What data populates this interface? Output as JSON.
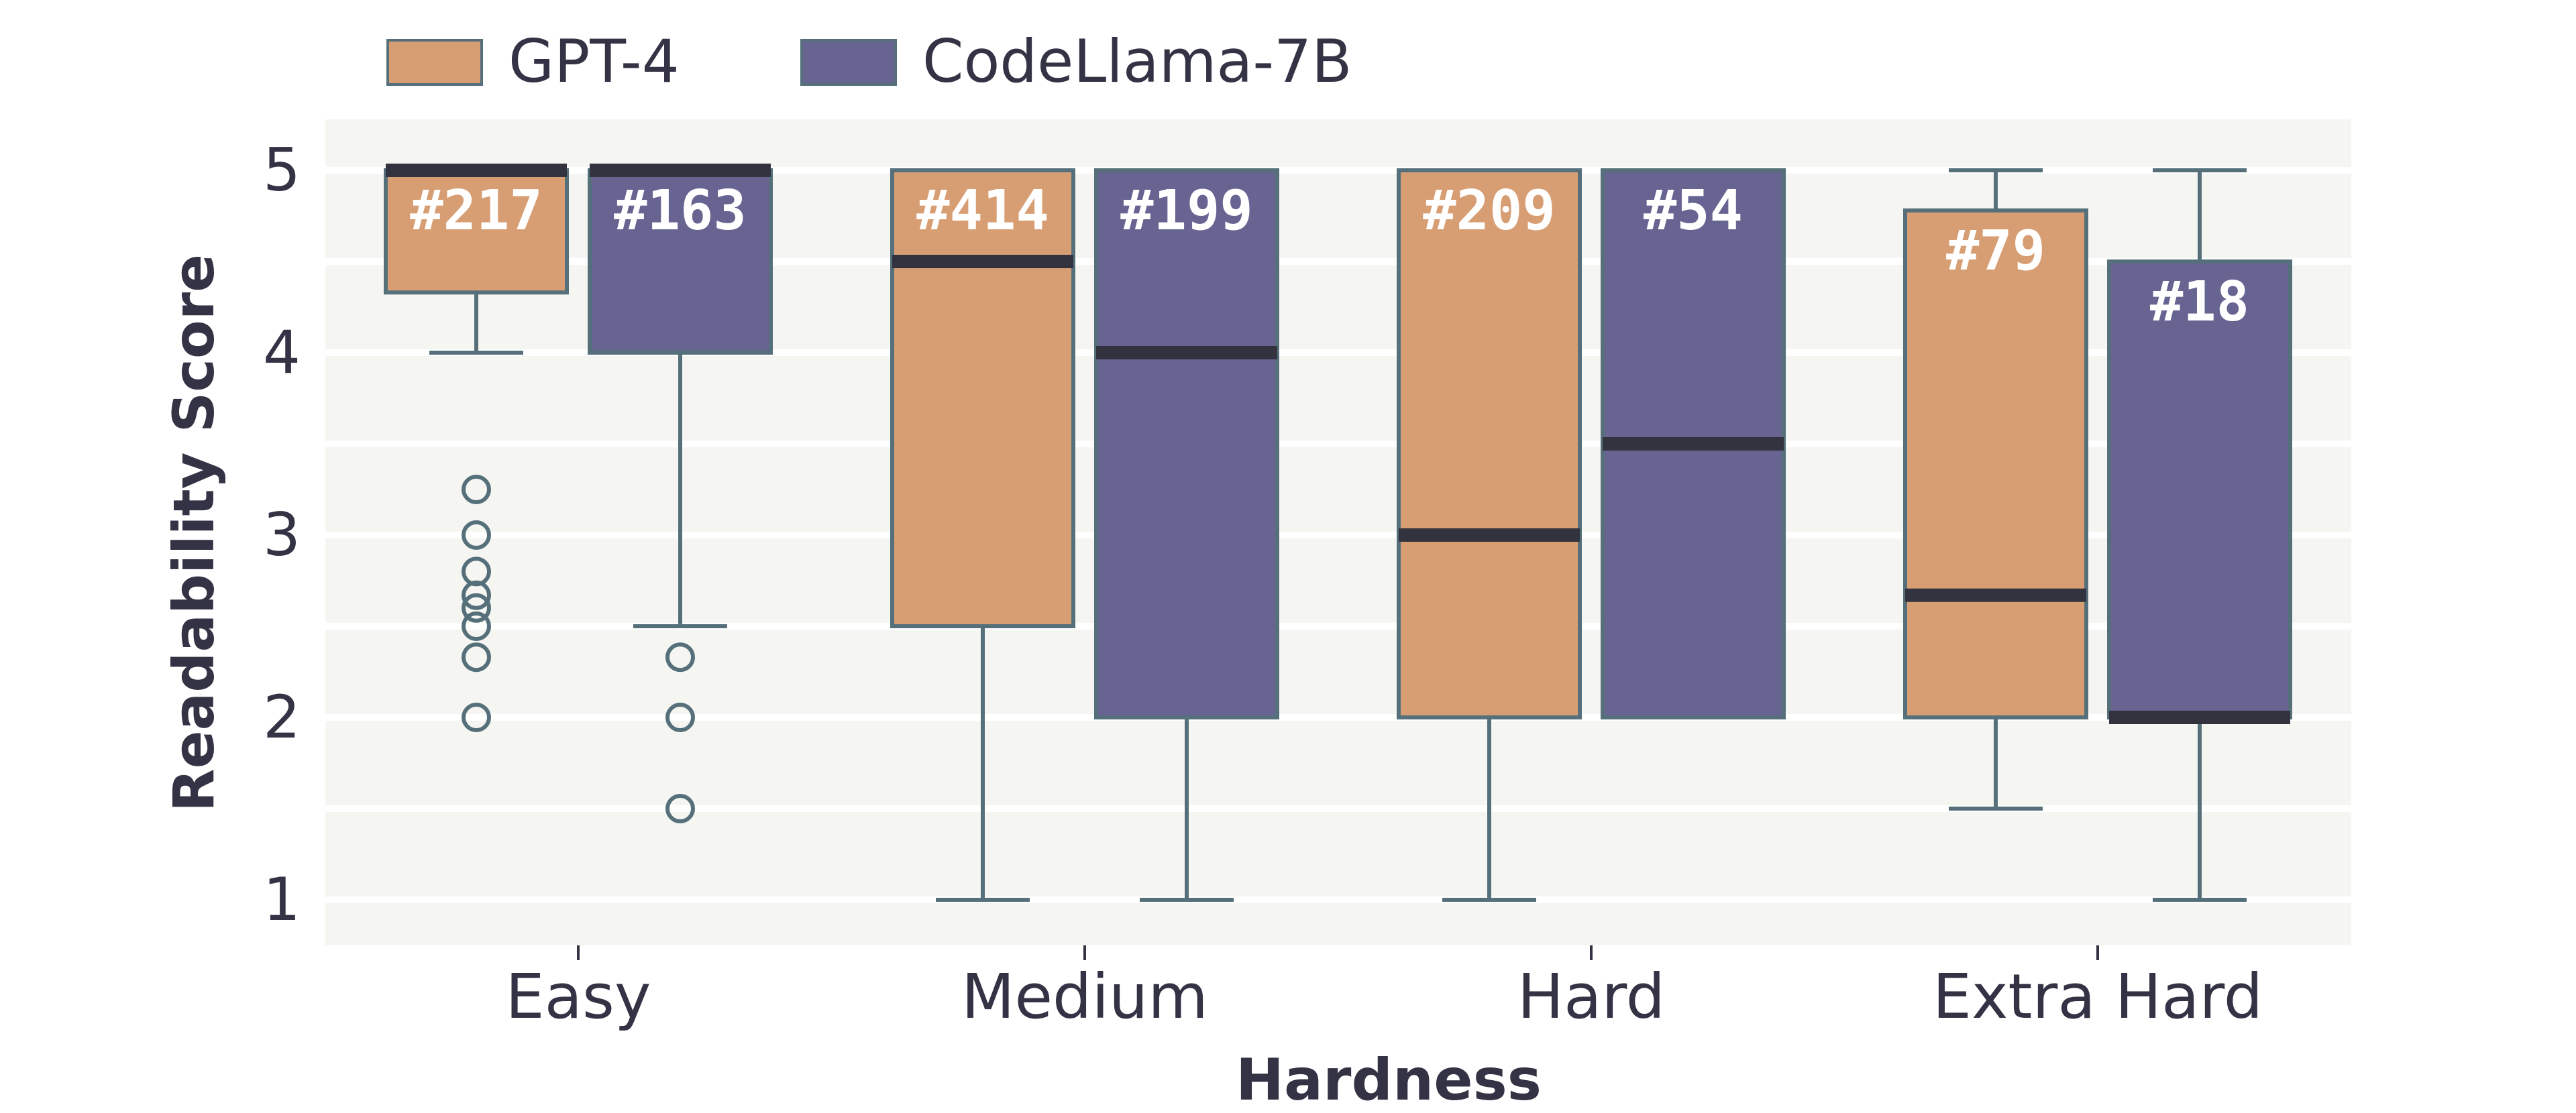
{
  "chart_data": {
    "type": "box",
    "xlabel": "Hardness",
    "ylabel": "Readability Score",
    "ylim": [
      0.75,
      5.3
    ],
    "yticks": [
      "1",
      "2",
      "3",
      "4",
      "5"
    ],
    "grid": true,
    "legend_position": "top-left",
    "categories": [
      "Easy",
      "Medium",
      "Hard",
      "Extra Hard"
    ],
    "series": [
      {
        "name": "GPT-4",
        "color": "#D89E73",
        "boxes": [
          {
            "category": "Easy",
            "q1": 4.33,
            "median": 5.0,
            "q3": 5.0,
            "whisker_low": 4.0,
            "whisker_high": 5.0,
            "outliers": [
              3.25,
              3.0,
              2.8,
              2.67,
              2.6,
              2.5,
              2.33,
              2.0
            ],
            "count_label": "#217"
          },
          {
            "category": "Medium",
            "q1": 2.5,
            "median": 4.5,
            "q3": 5.0,
            "whisker_low": 1.0,
            "whisker_high": 5.0,
            "outliers": [],
            "count_label": "#414"
          },
          {
            "category": "Hard",
            "q1": 2.0,
            "median": 3.0,
            "q3": 5.0,
            "whisker_low": 1.0,
            "whisker_high": 5.0,
            "outliers": [],
            "count_label": "#209"
          },
          {
            "category": "Extra Hard",
            "q1": 2.0,
            "median": 2.67,
            "q3": 4.78,
            "whisker_low": 1.5,
            "whisker_high": 5.0,
            "outliers": [],
            "count_label": "#79"
          }
        ]
      },
      {
        "name": "CodeLlama-7B",
        "color": "#676492",
        "boxes": [
          {
            "category": "Easy",
            "q1": 4.0,
            "median": 5.0,
            "q3": 5.0,
            "whisker_low": 2.5,
            "whisker_high": 5.0,
            "outliers": [
              2.33,
              2.0,
              1.5
            ],
            "count_label": "#163"
          },
          {
            "category": "Medium",
            "q1": 2.0,
            "median": 4.0,
            "q3": 5.0,
            "whisker_low": 1.0,
            "whisker_high": 5.0,
            "outliers": [],
            "count_label": "#199"
          },
          {
            "category": "Hard",
            "q1": 2.0,
            "median": 3.5,
            "q3": 5.0,
            "whisker_low": 2.0,
            "whisker_high": 5.0,
            "outliers": [],
            "count_label": "#54"
          },
          {
            "category": "Extra Hard",
            "q1": 2.0,
            "median": 2.0,
            "q3": 4.5,
            "whisker_low": 1.0,
            "whisker_high": 5.0,
            "outliers": [],
            "count_label": "#18"
          }
        ]
      }
    ]
  },
  "colors": {
    "plot_background": "#F5F5F1",
    "grid": "#FFFFFF",
    "box_edge": "#55707A",
    "median": "#33323F",
    "text": "#333345"
  }
}
